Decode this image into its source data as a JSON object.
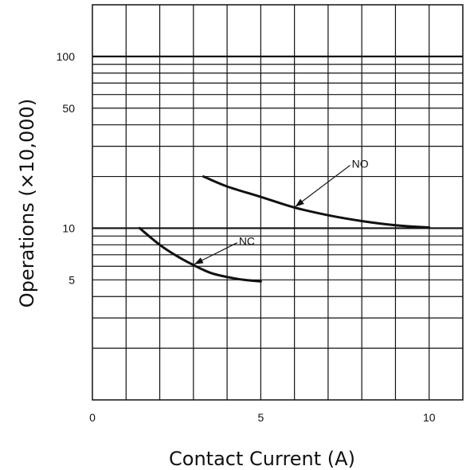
{
  "chart_data": {
    "type": "line",
    "xlabel": "Contact Current (A)",
    "ylabel": "Operations (×10,000)",
    "x_scale": "linear",
    "y_scale": "log",
    "xlim": [
      0,
      11
    ],
    "ylim": [
      1,
      200
    ],
    "x_ticks": [
      0,
      5,
      10
    ],
    "y_ticks": [
      5,
      10,
      50,
      100
    ],
    "grid": true,
    "series": [
      {
        "name": "NO",
        "x": [
          3.3,
          4,
          5,
          6,
          7,
          8,
          9,
          10
        ],
        "y": [
          20,
          17.5,
          15.2,
          13.2,
          11.9,
          11.0,
          10.4,
          10.1
        ]
      },
      {
        "name": "NC",
        "x": [
          1.4,
          2,
          2.5,
          3,
          3.5,
          4,
          4.5,
          5
        ],
        "y": [
          10,
          8,
          6.9,
          6.1,
          5.5,
          5.2,
          5.0,
          4.9
        ]
      }
    ],
    "annotations": [
      {
        "text": "NO",
        "points_to": "NO",
        "at_x": 6
      },
      {
        "text": "NC",
        "points_to": "NC",
        "at_x": 3
      }
    ]
  }
}
